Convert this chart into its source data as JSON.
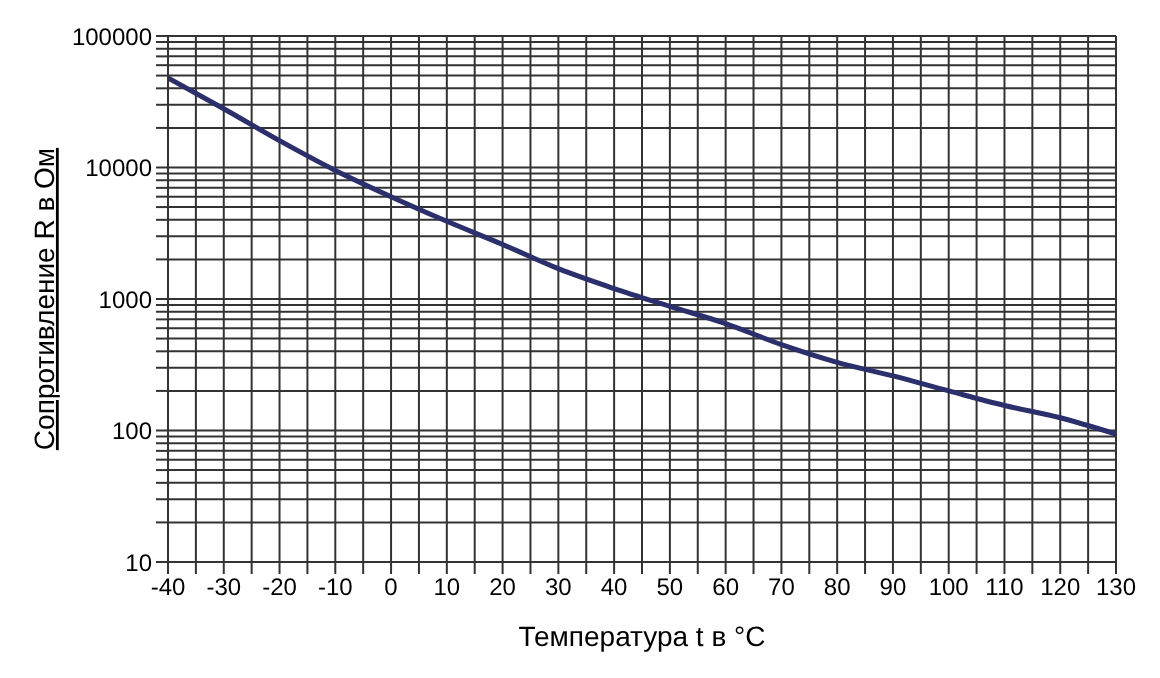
{
  "chart_data": {
    "type": "line",
    "xlabel": "Температура t в °C",
    "ylabel": "Сопротивление R в Ом",
    "log": "y",
    "grid": true,
    "legend": false,
    "marker": "none",
    "line_style": "solid",
    "x": [
      -40,
      -30,
      -20,
      -10,
      0,
      10,
      20,
      30,
      40,
      50,
      60,
      70,
      80,
      90,
      100,
      110,
      120,
      130
    ],
    "series": [
      {
        "color": "#2b2f6b",
        "values": [
          48000,
          28000,
          16000,
          9500,
          6000,
          3900,
          2600,
          1700,
          1200,
          880,
          650,
          450,
          330,
          260,
          200,
          155,
          125,
          94
        ]
      }
    ],
    "xlim": [
      -40,
      130
    ],
    "xticks": [
      -40,
      {
        "value": -35,
        "label": null
      },
      -30,
      {
        "value": -25,
        "label": null
      },
      -20,
      {
        "value": -15,
        "label": null
      },
      -10,
      {
        "value": -5,
        "label": null
      },
      0,
      {
        "value": 5,
        "label": null
      },
      10,
      {
        "value": 15,
        "label": null
      },
      20,
      {
        "value": 25,
        "label": null
      },
      30,
      {
        "value": 35,
        "label": null
      },
      40,
      {
        "value": 45,
        "label": null
      },
      50,
      {
        "value": 55,
        "label": null
      },
      60,
      {
        "value": 65,
        "label": null
      },
      70,
      {
        "value": 75,
        "label": null
      },
      80,
      {
        "value": 85,
        "label": null
      },
      90,
      {
        "value": 95,
        "label": null
      },
      100,
      {
        "value": 105,
        "label": null
      },
      110,
      {
        "value": 115,
        "label": null
      },
      120,
      {
        "value": 125,
        "label": null
      },
      130
    ],
    "ylim": [
      10,
      100000
    ],
    "yticks": [
      10,
      {
        "value": 20,
        "label": null
      },
      {
        "value": 30,
        "label": null
      },
      {
        "value": 40,
        "label": null
      },
      {
        "value": 50,
        "label": null
      },
      {
        "value": 60,
        "label": null
      },
      {
        "value": 70,
        "label": null
      },
      {
        "value": 80,
        "label": null
      },
      {
        "value": 90,
        "label": null
      },
      100,
      {
        "value": 200,
        "label": null
      },
      {
        "value": 300,
        "label": null
      },
      {
        "value": 400,
        "label": null
      },
      {
        "value": 500,
        "label": null
      },
      {
        "value": 600,
        "label": null
      },
      {
        "value": 700,
        "label": null
      },
      {
        "value": 800,
        "label": null
      },
      {
        "value": 900,
        "label": null
      },
      1000,
      {
        "value": 2000,
        "label": null
      },
      {
        "value": 3000,
        "label": null
      },
      {
        "value": 4000,
        "label": null
      },
      {
        "value": 5000,
        "label": null
      },
      {
        "value": 6000,
        "label": null
      },
      {
        "value": 7000,
        "label": null
      },
      {
        "value": 8000,
        "label": null
      },
      {
        "value": 9000,
        "label": null
      },
      10000,
      {
        "value": 20000,
        "label": null
      },
      {
        "value": 30000,
        "label": null
      },
      {
        "value": 40000,
        "label": null
      },
      {
        "value": 50000,
        "label": null
      },
      {
        "value": 60000,
        "label": null
      },
      {
        "value": 70000,
        "label": null
      },
      {
        "value": 80000,
        "label": null
      },
      {
        "value": 90000,
        "label": null
      },
      100000
    ]
  }
}
